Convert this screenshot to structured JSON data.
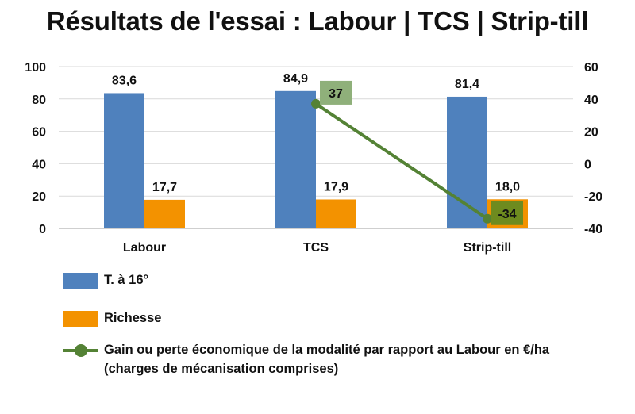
{
  "chart_data": {
    "type": "bar",
    "title": "Résultats de l'essai : Labour | TCS | Strip-till",
    "categories": [
      "Labour",
      "TCS",
      "Strip-till"
    ],
    "series": [
      {
        "name": "T. à 16°",
        "type": "bar",
        "axis": "left",
        "color": "#4f81bd",
        "values": [
          83.6,
          84.9,
          81.4
        ],
        "labels": [
          "83,6",
          "84,9",
          "81,4"
        ]
      },
      {
        "name": "Richesse",
        "type": "bar",
        "axis": "left",
        "color": "#f39200",
        "values": [
          17.7,
          17.9,
          18.0
        ],
        "labels": [
          "17,7",
          "17,9",
          "18,0"
        ]
      },
      {
        "name": "Gain ou perte économique de la modalité par rapport au Labour en €/ha",
        "name_line2": "(charges de mécanisation comprises)",
        "type": "line",
        "axis": "right",
        "color": "#548235",
        "x": [
          "TCS",
          "Strip-till"
        ],
        "values": [
          37,
          -34
        ],
        "labels": [
          "37",
          "-34"
        ]
      }
    ],
    "left_axis": {
      "ylim": [
        0,
        100
      ],
      "ticks": [
        "0",
        "20",
        "40",
        "60",
        "80",
        "100"
      ]
    },
    "right_axis": {
      "ylim": [
        -40,
        60
      ],
      "ticks": [
        "-40",
        "-20",
        "0",
        "20",
        "40",
        "60"
      ]
    },
    "grid": true,
    "legend": "bottom"
  }
}
